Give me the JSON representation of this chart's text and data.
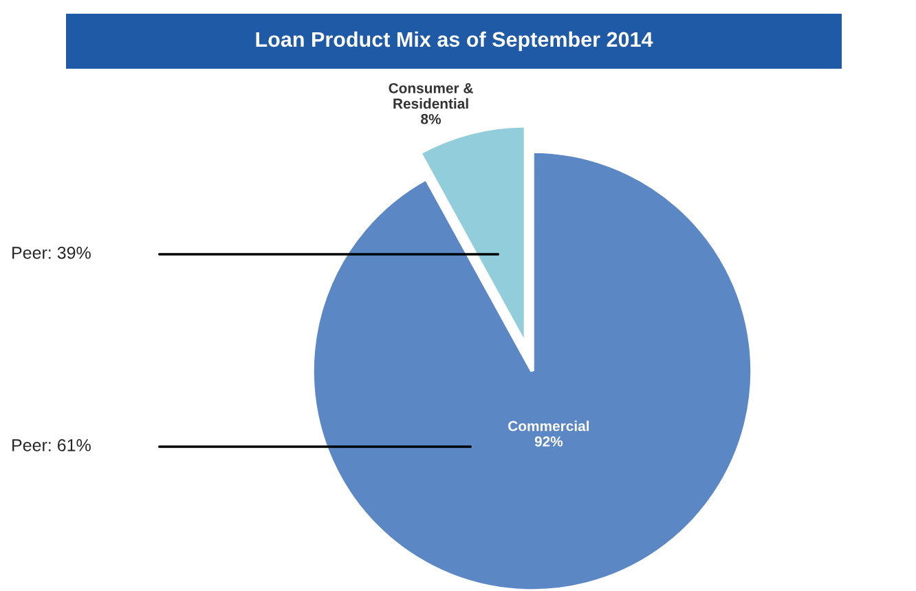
{
  "chart_data": {
    "type": "pie",
    "title": "Loan Product Mix as of September 2014",
    "categories": [
      "Consumer &\nResidential",
      "Commercial"
    ],
    "values": [
      8,
      92
    ],
    "colors": [
      "#92cddc",
      "#5b87c5"
    ],
    "value_labels": [
      "8%",
      "92%"
    ],
    "annotations": [
      "Peer: 39%",
      "Peer: 61%"
    ]
  }
}
